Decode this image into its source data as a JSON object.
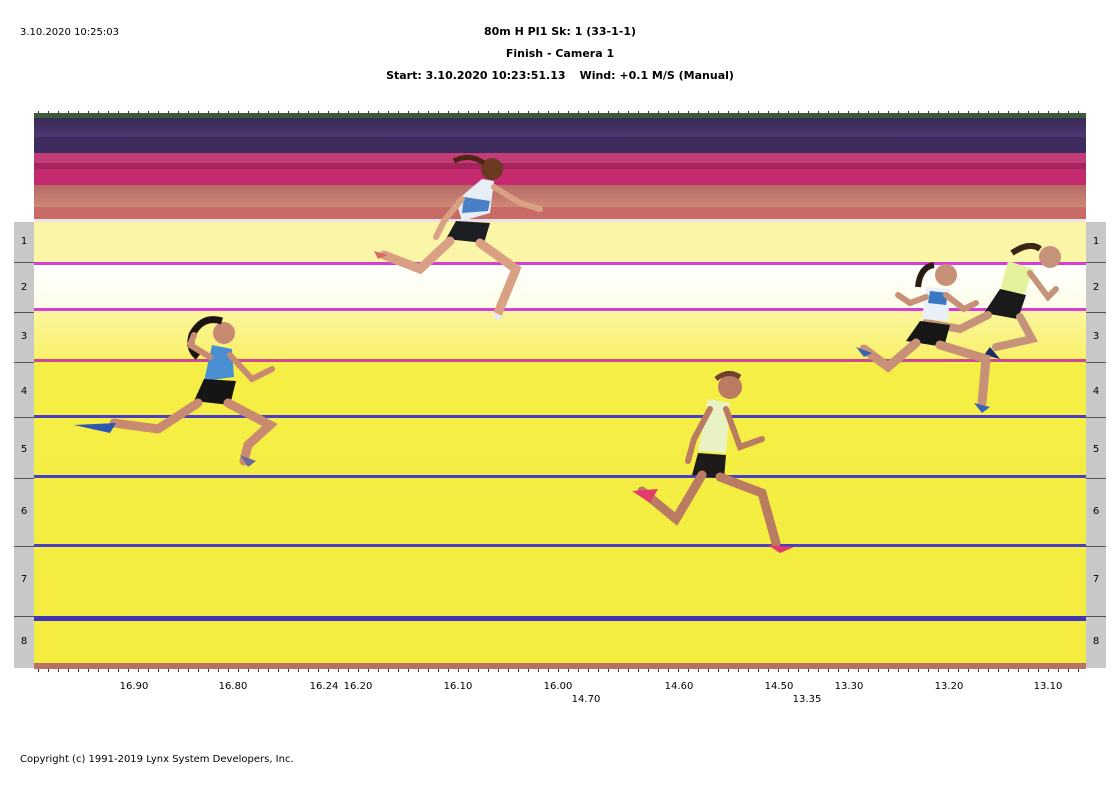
{
  "timestamp": "3.10.2020 10:25:03",
  "header": {
    "line1": "80m H PI1   Sk: 1 (33-1-1)",
    "line2": "Finish - Camera 1",
    "start": "Start: 3.10.2020 10:23:51.13",
    "wind": "Wind: +0.1 M/S (Manual)"
  },
  "lanes": [
    "1",
    "2",
    "3",
    "4",
    "5",
    "6",
    "7",
    "8"
  ],
  "time_axis": {
    "row1": [
      "16.90",
      "16.80",
      "16.24",
      "16.20",
      "16.10",
      "16.00",
      "14.60",
      "14.50",
      "13.30",
      "13.20",
      "13.10"
    ],
    "row2": [
      "14.70",
      "13.35"
    ]
  },
  "colors": {
    "track_yellow": "#f4ec3e",
    "lane_line_magenta": "#d63fd6",
    "lane_line_blue": "#4a3fc2"
  },
  "copyright": "Copyright (c) 1991-2019 Lynx System Developers, Inc."
}
